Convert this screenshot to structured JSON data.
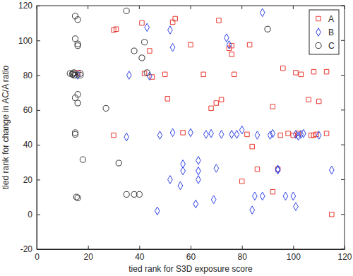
{
  "chart_data": {
    "type": "scatter",
    "x_label": "tied rank for S3D exposure score",
    "y_label": "tied rank for change in AC/A ratio",
    "xlim": [
      0,
      120
    ],
    "ylim": [
      -20,
      120
    ],
    "xticks": [
      0,
      20,
      40,
      60,
      80,
      100,
      120
    ],
    "yticks": [
      -20,
      0,
      20,
      40,
      60,
      80,
      100,
      120
    ],
    "grid": false,
    "legend": "top-right",
    "series": [
      {
        "name": "A",
        "color": "#e8382f",
        "marker": "square",
        "x": [
          16,
          30,
          30,
          31,
          41,
          42,
          44,
          45,
          50,
          51,
          53,
          54,
          57,
          60,
          65,
          68,
          70,
          71,
          72,
          75,
          76,
          76,
          77,
          80,
          82,
          83,
          84,
          86,
          92,
          92,
          94,
          95,
          96,
          98,
          100,
          101,
          102,
          103,
          106,
          107,
          108,
          108,
          109,
          110,
          113,
          113,
          115
        ],
        "values": [
          81.5,
          45.5,
          106,
          106.5,
          110,
          81,
          94,
          79,
          80.5,
          66.5,
          110.5,
          112.5,
          47,
          97.5,
          80.5,
          61,
          64,
          111.5,
          66,
          95.5,
          97,
          92,
          80.5,
          19,
          46,
          97.5,
          39,
          26,
          62,
          13,
          26,
          45.5,
          84,
          46.5,
          45.5,
          81.5,
          46.5,
          80.5,
          66,
          45.5,
          45.5,
          82,
          46,
          65,
          82,
          46.5,
          0
        ]
      },
      {
        "name": "B",
        "color": "#2b3ee8",
        "marker": "diamond",
        "x": [
          16,
          35,
          36,
          43,
          44,
          47,
          48,
          52,
          52,
          53,
          53,
          56,
          57,
          57,
          60,
          62,
          63,
          63,
          63,
          66,
          68,
          69,
          70,
          72,
          74,
          75,
          76,
          78,
          80,
          84,
          85,
          86,
          88,
          88,
          91,
          92,
          94,
          94,
          97,
          100,
          101,
          102,
          101,
          103,
          104,
          110,
          115
        ],
        "values": [
          80,
          44.5,
          80,
          107.5,
          79.5,
          2,
          45.5,
          106,
          20,
          47,
          96,
          16.5,
          25,
          29,
          47,
          6,
          20,
          25,
          31,
          46,
          46.5,
          8.5,
          26.5,
          46,
          101.5,
          97.5,
          46,
          46,
          48.5,
          2.5,
          10.5,
          45.5,
          116,
          10.5,
          45.5,
          46.5,
          25.5,
          26,
          10.5,
          10.5,
          46,
          45,
          4.5,
          46,
          46.5,
          45.5,
          25.5
        ]
      },
      {
        "name": "C",
        "color": "#333333",
        "marker": "circle",
        "x": [
          13,
          14,
          14,
          14.5,
          14.5,
          15,
          15,
          15,
          15,
          15,
          15,
          15.5,
          16,
          16,
          16,
          16,
          16,
          16,
          17,
          17,
          18,
          27,
          32,
          35,
          35,
          38,
          38,
          40,
          41,
          42,
          43,
          90
        ],
        "values": [
          81,
          80.5,
          81,
          80,
          81.5,
          114,
          101,
          67,
          47,
          46,
          80,
          10,
          112,
          98,
          97,
          69,
          64,
          9.5,
          80,
          81,
          31.5,
          61,
          29.5,
          117,
          11.5,
          94,
          11.5,
          11.5,
          90,
          99,
          81.5,
          106.5
        ]
      }
    ]
  }
}
